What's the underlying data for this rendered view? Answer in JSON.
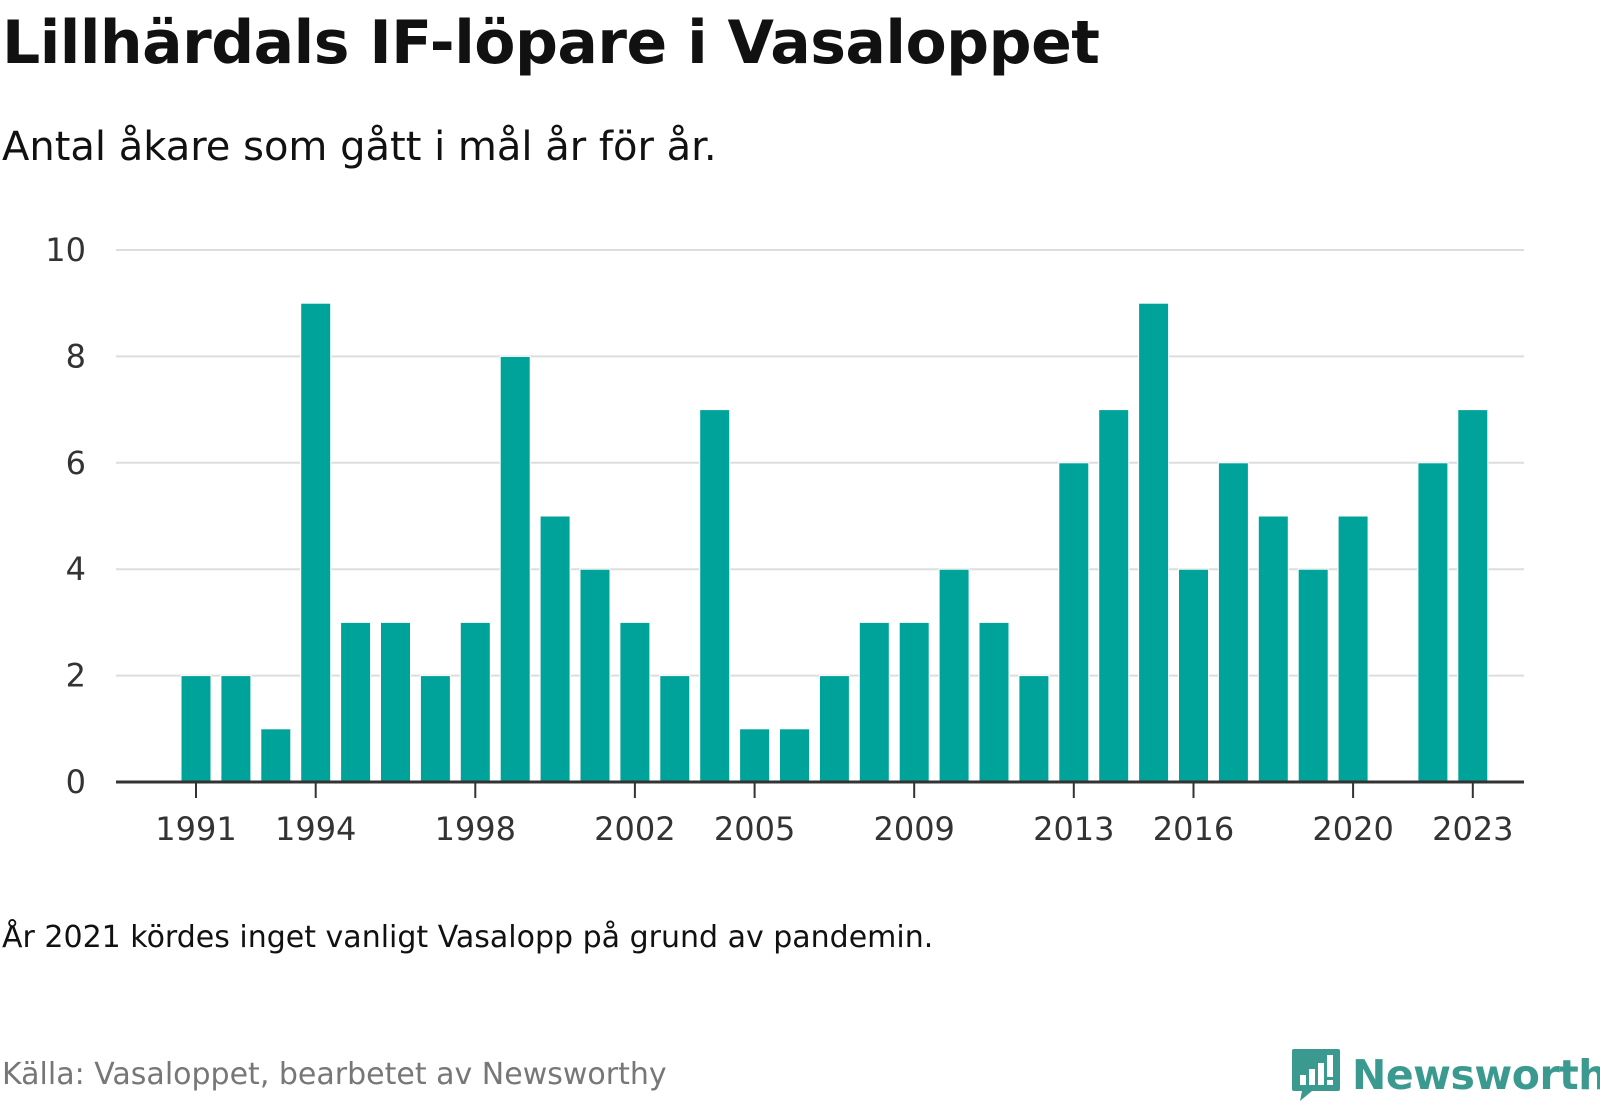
{
  "header": {
    "title": "Lillhärdals IF-löpare i Vasaloppet",
    "subtitle": "Antal åkare som gått i mål år för år."
  },
  "footer": {
    "note": "År 2021 kördes inget vanligt Vasalopp på grund av pandemin.",
    "source": "Källa: Vasaloppet, bearbetet av Newsworthy",
    "brand": "Newsworthy",
    "brand_icon": "bar-chart-speech-bubble-icon"
  },
  "colors": {
    "bar": "#00a39a",
    "grid": "#dddddd",
    "axis": "#333333",
    "brand": "#3a9a8f"
  },
  "chart_data": {
    "type": "bar",
    "title": "Lillhärdals IF-löpare i Vasaloppet",
    "subtitle": "Antal åkare som gått i mål år för år.",
    "xlabel": "",
    "ylabel": "",
    "categories": [
      1991,
      1992,
      1993,
      1994,
      1995,
      1996,
      1997,
      1998,
      1999,
      2000,
      2001,
      2002,
      2003,
      2004,
      2005,
      2006,
      2007,
      2008,
      2009,
      2010,
      2011,
      2012,
      2013,
      2014,
      2015,
      2016,
      2017,
      2018,
      2019,
      2020,
      2021,
      2022,
      2023
    ],
    "values": [
      2,
      2,
      1,
      9,
      3,
      3,
      2,
      3,
      8,
      5,
      4,
      3,
      2,
      7,
      1,
      1,
      2,
      3,
      3,
      4,
      3,
      2,
      6,
      7,
      9,
      4,
      6,
      5,
      4,
      5,
      null,
      6,
      7
    ],
    "x_tick_labels": [
      "1991",
      "1994",
      "1998",
      "2002",
      "2005",
      "2009",
      "2013",
      "2016",
      "2020",
      "2023"
    ],
    "y_ticks": [
      0,
      2,
      4,
      6,
      8,
      10
    ],
    "ylim": [
      0,
      10
    ],
    "grid": true,
    "legend": "none"
  }
}
